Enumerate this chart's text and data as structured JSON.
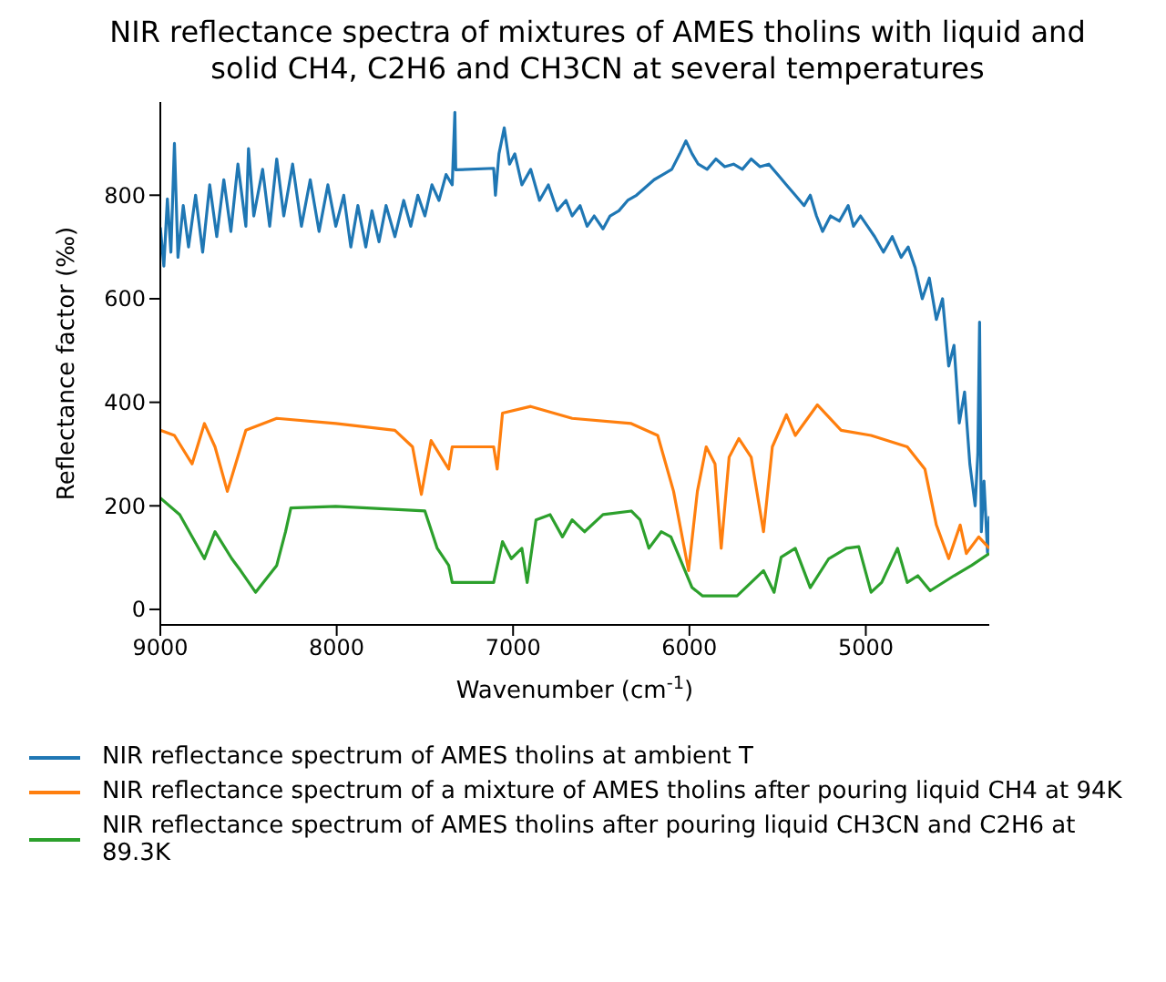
{
  "chart_data": {
    "type": "line",
    "title": "NIR reflectance spectra of mixtures of AMES tholins with liquid and solid CH4, C2H6 and CH3CN at several temperatures",
    "xlabel": "Wavenumber (cm$^{-1}$)",
    "ylabel": "Reflectance factor (‰)",
    "xlim": [
      9000,
      4300
    ],
    "xticks": [
      9000,
      8000,
      7000,
      6000,
      5000
    ],
    "ylim": [
      -30,
      980
    ],
    "yticks": [
      0,
      200,
      400,
      600,
      800
    ],
    "legend": "bottom",
    "marker": "none",
    "line_style": "solid",
    "series": [
      {
        "name": "NIR reflectance spectrum of AMES tholins at ambient T",
        "color": "#1f77b4",
        "x": [
          9000,
          8980,
          8960,
          8940,
          8920,
          8900,
          8870,
          8840,
          8800,
          8760,
          8720,
          8680,
          8640,
          8600,
          8560,
          8515,
          8500,
          8470,
          8420,
          8380,
          8340,
          8300,
          8250,
          8200,
          8150,
          8100,
          8050,
          8005,
          7960,
          7920,
          7880,
          7835,
          7800,
          7760,
          7720,
          7670,
          7620,
          7580,
          7540,
          7500,
          7460,
          7420,
          7380,
          7345,
          7330,
          7325,
          7110,
          7100,
          7080,
          7050,
          7020,
          6990,
          6950,
          6900,
          6850,
          6800,
          6750,
          6700,
          6665,
          6620,
          6580,
          6540,
          6490,
          6450,
          6400,
          6350,
          6300,
          6250,
          6200,
          6150,
          6100,
          6055,
          6020,
          5985,
          5950,
          5900,
          5850,
          5800,
          5750,
          5700,
          5650,
          5600,
          5550,
          5500,
          5450,
          5400,
          5350,
          5315,
          5280,
          5245,
          5200,
          5150,
          5100,
          5070,
          5030,
          4990,
          4950,
          4900,
          4850,
          4800,
          4760,
          4720,
          4680,
          4640,
          4600,
          4565,
          4530,
          4500,
          4470,
          4440,
          4410,
          4380,
          4365,
          4355,
          4345,
          4330,
          4310,
          4300
        ],
        "values": [
          738,
          663,
          793,
          690,
          900,
          680,
          780,
          700,
          800,
          690,
          820,
          720,
          830,
          730,
          860,
          740,
          890,
          760,
          850,
          740,
          870,
          760,
          860,
          740,
          830,
          730,
          820,
          740,
          800,
          700,
          780,
          700,
          770,
          710,
          780,
          720,
          790,
          740,
          800,
          760,
          820,
          790,
          840,
          820,
          960,
          849,
          852,
          800,
          880,
          930,
          860,
          880,
          820,
          850,
          790,
          820,
          770,
          790,
          760,
          780,
          740,
          760,
          735,
          760,
          770,
          790,
          800,
          815,
          830,
          840,
          850,
          880,
          905,
          880,
          860,
          850,
          870,
          855,
          860,
          850,
          870,
          855,
          860,
          840,
          820,
          800,
          780,
          800,
          760,
          730,
          760,
          750,
          780,
          740,
          760,
          740,
          720,
          690,
          720,
          680,
          700,
          660,
          600,
          640,
          560,
          600,
          470,
          510,
          360,
          420,
          280,
          200,
          300,
          555,
          150,
          248,
          110,
          180
        ]
      },
      {
        "name": "NIR reflectance spectrum of a mixture of AMES tholins after pouring liquid CH4 at 94K",
        "color": "#ff7f0e",
        "x": [
          9000,
          8920,
          8820,
          8750,
          8690,
          8620,
          8515,
          8340,
          8005,
          7670,
          7570,
          7520,
          7465,
          7365,
          7345,
          7110,
          7090,
          7060,
          6900,
          6665,
          6330,
          6180,
          6090,
          6005,
          5955,
          5905,
          5855,
          5820,
          5775,
          5720,
          5650,
          5580,
          5530,
          5450,
          5400,
          5275,
          5140,
          4970,
          4765,
          4665,
          4600,
          4530,
          4465,
          4430,
          4360,
          4300
        ],
        "values": [
          346,
          336,
          281,
          359,
          314,
          228,
          346,
          369,
          359,
          346,
          314,
          222,
          326,
          271,
          314,
          314,
          271,
          379,
          392,
          369,
          359,
          336,
          228,
          75,
          228,
          314,
          281,
          118,
          294,
          330,
          294,
          150,
          314,
          376,
          336,
          395,
          346,
          336,
          314,
          271,
          163,
          98,
          163,
          108,
          140,
          118
        ]
      },
      {
        "name": "NIR reflectance spectrum of AMES tholins after pouring liquid CH3CN and C2H6 at 89.3K",
        "color": "#2ca02c",
        "x": [
          9000,
          8890,
          8750,
          8690,
          8595,
          8545,
          8460,
          8340,
          8290,
          8260,
          8005,
          7500,
          7430,
          7365,
          7345,
          7110,
          7060,
          7010,
          6950,
          6920,
          6870,
          6790,
          6720,
          6665,
          6595,
          6490,
          6330,
          6280,
          6230,
          6160,
          6105,
          5985,
          5925,
          5730,
          5650,
          5580,
          5520,
          5480,
          5400,
          5315,
          5210,
          5110,
          5040,
          4970,
          4910,
          4820,
          4765,
          4705,
          4635,
          4500,
          4400,
          4300
        ],
        "values": [
          215,
          183,
          98,
          150,
          98,
          75,
          33,
          85,
          150,
          196,
          199,
          190,
          118,
          85,
          52,
          52,
          131,
          98,
          118,
          52,
          173,
          183,
          140,
          173,
          150,
          183,
          190,
          173,
          118,
          150,
          140,
          42,
          26,
          26,
          52,
          75,
          33,
          101,
          118,
          42,
          98,
          118,
          121,
          33,
          52,
          118,
          52,
          65,
          36,
          65,
          85,
          108
        ]
      }
    ]
  }
}
